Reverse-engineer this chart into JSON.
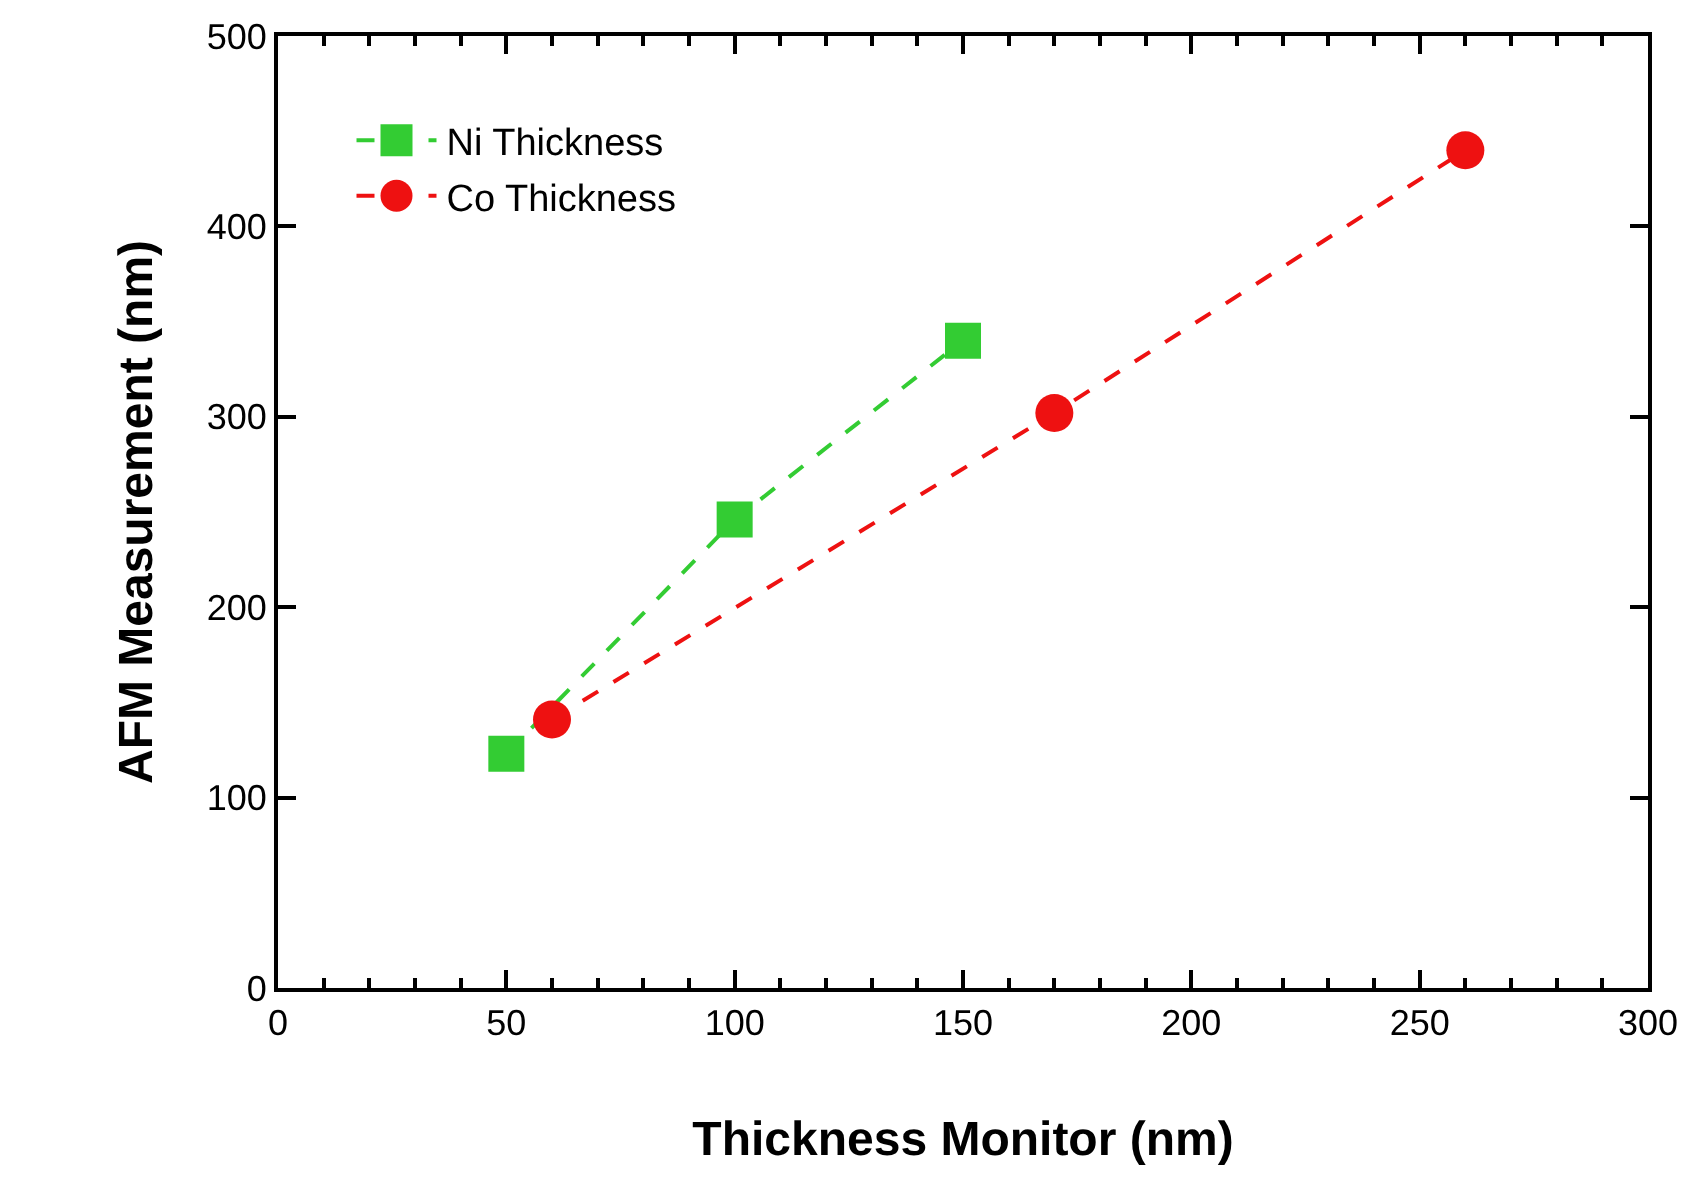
{
  "chart_data": {
    "type": "line",
    "xlabel": "Thickness Monitor (nm)",
    "ylabel": "AFM Measurement (nm)",
    "xlim": [
      0,
      300
    ],
    "xticks": [
      0,
      50,
      100,
      150,
      200,
      250,
      300
    ],
    "ylim": [
      0,
      500
    ],
    "yticks": [
      0,
      100,
      200,
      300,
      400,
      500
    ],
    "grid": false,
    "legend": "top left",
    "line_style": "dashed",
    "series": [
      {
        "name": "Ni Thickness",
        "color": "#33cc33",
        "marker": "square",
        "x": [
          50,
          100,
          150
        ],
        "values": [
          123,
          246,
          340
        ]
      },
      {
        "name": "Co Thickness",
        "color": "#ee1111",
        "marker": "circle",
        "x": [
          60,
          170,
          260
        ],
        "values": [
          141,
          302,
          440
        ]
      }
    ]
  }
}
